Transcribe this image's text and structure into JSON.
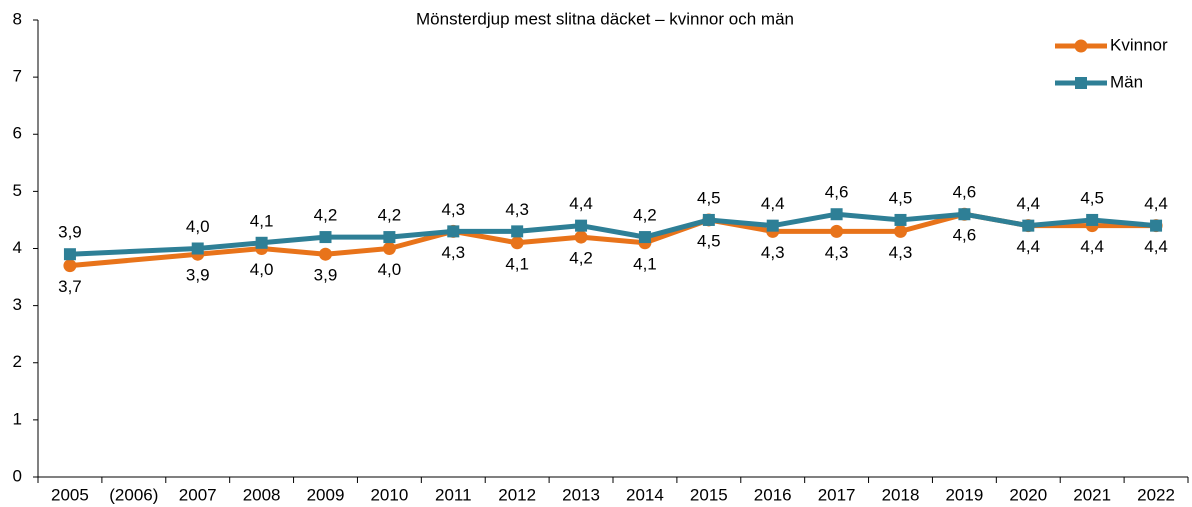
{
  "chart_data": {
    "type": "line",
    "title": "Mönsterdjup mest slitna däcket – kvinnor och män",
    "categories": [
      "2005",
      "(2006)",
      "2007",
      "2008",
      "2009",
      "2010",
      "2011",
      "2012",
      "2013",
      "2014",
      "2015",
      "2016",
      "2017",
      "2018",
      "2019",
      "2020",
      "2021",
      "2022"
    ],
    "series": [
      {
        "name": "Kvinnor",
        "color": "#e8731a",
        "marker": "circle",
        "label_position": "below",
        "values": [
          3.7,
          null,
          3.9,
          4.0,
          3.9,
          4.0,
          4.3,
          4.1,
          4.2,
          4.1,
          4.5,
          4.3,
          4.3,
          4.3,
          4.6,
          4.4,
          4.4,
          4.4
        ],
        "value_labels": [
          "3,7",
          null,
          "3,9",
          "4,0",
          "3,9",
          "4,0",
          "4,3",
          "4,1",
          "4,2",
          "4,1",
          "4,5",
          "4,3",
          "4,3",
          "4,3",
          "4,6",
          "4,4",
          "4,4",
          "4,4"
        ]
      },
      {
        "name": "Män",
        "color": "#2e7f96",
        "marker": "square",
        "label_position": "above",
        "values": [
          3.9,
          null,
          4.0,
          4.1,
          4.2,
          4.2,
          4.3,
          4.3,
          4.4,
          4.2,
          4.5,
          4.4,
          4.6,
          4.5,
          4.6,
          4.4,
          4.5,
          4.4
        ],
        "value_labels": [
          "3,9",
          null,
          "4,0",
          "4,1",
          "4,2",
          "4,2",
          "4,3",
          "4,3",
          "4,4",
          "4,2",
          "4,5",
          "4,4",
          "4,6",
          "4,5",
          "4,6",
          "4,4",
          "4,5",
          "4,4"
        ]
      }
    ],
    "ylim": [
      0,
      8
    ],
    "yticks": [
      0,
      1,
      2,
      3,
      4,
      5,
      6,
      7,
      8
    ],
    "connect_gaps": true,
    "grid": false,
    "legend": "top-right"
  }
}
